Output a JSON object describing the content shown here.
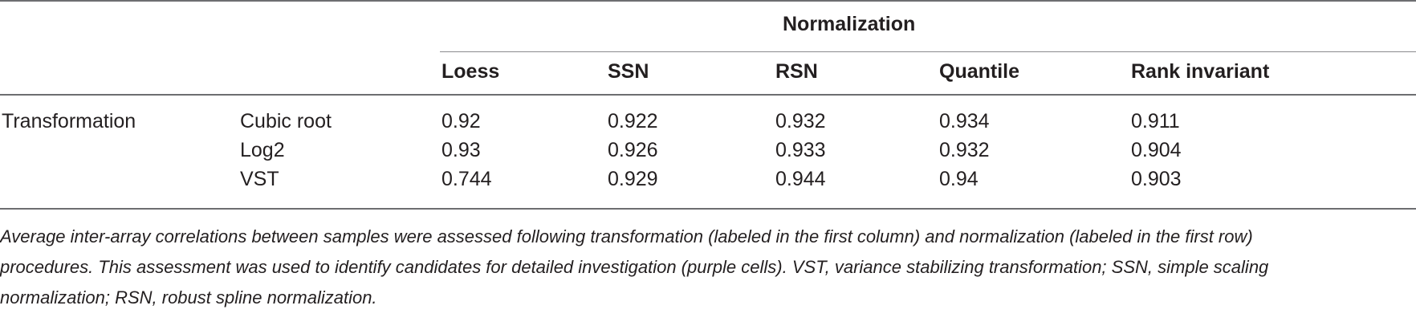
{
  "table": {
    "group_header": "Normalization",
    "row_group_label": "Transformation",
    "columns": [
      "Loess",
      "SSN",
      "RSN",
      "Quantile",
      "Rank invariant"
    ],
    "rows": [
      {
        "label": "Cubic root",
        "values": [
          "0.92",
          "0.922",
          "0.932",
          "0.934",
          "0.911"
        ]
      },
      {
        "label": "Log2",
        "values": [
          "0.93",
          "0.926",
          "0.933",
          "0.932",
          "0.904"
        ]
      },
      {
        "label": "VST",
        "values": [
          "0.744",
          "0.929",
          "0.944",
          "0.94",
          "0.903"
        ]
      }
    ]
  },
  "caption": {
    "lines": [
      "Average inter-array correlations between samples were assessed following transformation (labeled in the first column) and normalization (labeled in the first row)",
      "procedures. This assessment was used to identify candidates for detailed investigation (purple cells). VST, variance stabilizing transformation; SSN, simple scaling",
      "normalization; RSN, robust spline normalization."
    ]
  }
}
